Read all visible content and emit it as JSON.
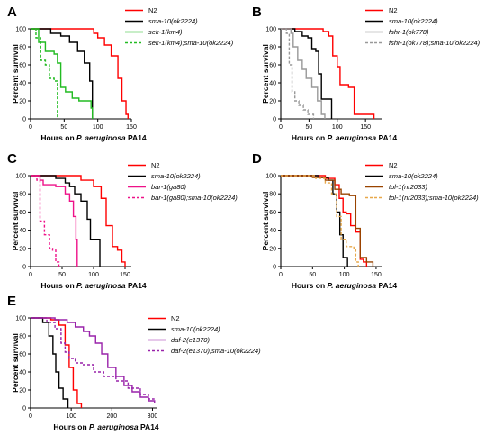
{
  "chart_data": [
    {
      "panel": "A",
      "type": "line",
      "step": true,
      "ylabel": "Percent survival",
      "xlabel_parts": [
        {
          "t": "Hours on ",
          "i": false
        },
        {
          "t": "P. aeruginosa",
          "i": true
        },
        {
          "t": " PA14",
          "i": false
        }
      ],
      "xlim": [
        0,
        150
      ],
      "ylim": [
        0,
        100
      ],
      "xticks": [
        0,
        50,
        100,
        150
      ],
      "yticks": [
        0,
        20,
        40,
        60,
        80,
        100
      ],
      "series": [
        {
          "name": "N2",
          "italic": false,
          "color": "#ff0000",
          "dash": false,
          "points": [
            [
              0,
              100
            ],
            [
              80,
              100
            ],
            [
              94,
              95
            ],
            [
              100,
              90
            ],
            [
              110,
              82
            ],
            [
              120,
              70
            ],
            [
              130,
              45
            ],
            [
              136,
              20
            ],
            [
              142,
              5
            ],
            [
              145,
              0
            ]
          ]
        },
        {
          "name": "sma-10(ok2224)",
          "italic": true,
          "color": "#000000",
          "dash": false,
          "points": [
            [
              0,
              100
            ],
            [
              30,
              95
            ],
            [
              45,
              92
            ],
            [
              58,
              85
            ],
            [
              70,
              75
            ],
            [
              80,
              62
            ],
            [
              88,
              42
            ],
            [
              92,
              0
            ]
          ]
        },
        {
          "name": "sek-1(km4)",
          "italic": true,
          "color": "#22bb22",
          "dash": false,
          "points": [
            [
              0,
              100
            ],
            [
              12,
              85
            ],
            [
              22,
              75
            ],
            [
              35,
              72
            ],
            [
              40,
              62
            ],
            [
              45,
              35
            ],
            [
              52,
              30
            ],
            [
              62,
              23
            ],
            [
              72,
              20
            ],
            [
              90,
              12
            ],
            [
              92,
              0
            ]
          ]
        },
        {
          "name": "sek-1(km4);sma-10(ok2224)",
          "italic": true,
          "color": "#22bb22",
          "dash": true,
          "points": [
            [
              0,
              100
            ],
            [
              8,
              90
            ],
            [
              15,
              65
            ],
            [
              22,
              60
            ],
            [
              28,
              45
            ],
            [
              35,
              42
            ],
            [
              40,
              0
            ]
          ]
        }
      ]
    },
    {
      "panel": "B",
      "type": "line",
      "step": true,
      "ylabel": "Percent survival",
      "xlabel_parts": [
        {
          "t": "Hours on ",
          "i": false
        },
        {
          "t": "P. aeruginosa",
          "i": true
        },
        {
          "t": " PA14",
          "i": false
        }
      ],
      "xlim": [
        0,
        180
      ],
      "ylim": [
        0,
        100
      ],
      "xticks": [
        0,
        50,
        100,
        150
      ],
      "yticks": [
        0,
        20,
        40,
        60,
        80,
        100
      ],
      "series": [
        {
          "name": "N2",
          "italic": false,
          "color": "#ff0000",
          "dash": false,
          "points": [
            [
              0,
              100
            ],
            [
              60,
              100
            ],
            [
              75,
              97
            ],
            [
              85,
              92
            ],
            [
              92,
              70
            ],
            [
              100,
              58
            ],
            [
              105,
              38
            ],
            [
              120,
              35
            ],
            [
              130,
              5
            ],
            [
              165,
              0
            ]
          ]
        },
        {
          "name": "sma-10(ok2224)",
          "italic": true,
          "color": "#000000",
          "dash": false,
          "points": [
            [
              0,
              100
            ],
            [
              25,
              97
            ],
            [
              38,
              92
            ],
            [
              48,
              90
            ],
            [
              55,
              78
            ],
            [
              62,
              75
            ],
            [
              67,
              50
            ],
            [
              72,
              22
            ],
            [
              90,
              0
            ]
          ]
        },
        {
          "name": "fshr-1(ok778)",
          "italic": true,
          "color": "#999999",
          "dash": false,
          "points": [
            [
              0,
              100
            ],
            [
              18,
              95
            ],
            [
              22,
              80
            ],
            [
              30,
              65
            ],
            [
              38,
              55
            ],
            [
              45,
              45
            ],
            [
              55,
              35
            ],
            [
              65,
              20
            ],
            [
              72,
              5
            ],
            [
              78,
              0
            ]
          ]
        },
        {
          "name": "fshr-1(ok778);sma-10(ok2224)",
          "italic": true,
          "color": "#999999",
          "dash": true,
          "points": [
            [
              0,
              100
            ],
            [
              10,
              95
            ],
            [
              15,
              60
            ],
            [
              20,
              30
            ],
            [
              25,
              20
            ],
            [
              32,
              15
            ],
            [
              40,
              10
            ],
            [
              48,
              5
            ],
            [
              58,
              0
            ]
          ]
        }
      ]
    },
    {
      "panel": "C",
      "type": "line",
      "step": true,
      "ylabel": "Percent survival",
      "xlabel_parts": [
        {
          "t": "Hours on ",
          "i": false
        },
        {
          "t": "P. aeruginosa",
          "i": true
        },
        {
          "t": " PA14",
          "i": false
        }
      ],
      "xlim": [
        0,
        160
      ],
      "ylim": [
        0,
        100
      ],
      "xticks": [
        0,
        50,
        100,
        150
      ],
      "yticks": [
        0,
        20,
        40,
        60,
        80,
        100
      ],
      "series": [
        {
          "name": "N2",
          "italic": false,
          "color": "#ff0000",
          "dash": false,
          "points": [
            [
              0,
              100
            ],
            [
              55,
              100
            ],
            [
              80,
              95
            ],
            [
              100,
              88
            ],
            [
              112,
              75
            ],
            [
              120,
              45
            ],
            [
              130,
              22
            ],
            [
              138,
              18
            ],
            [
              145,
              5
            ],
            [
              150,
              0
            ]
          ]
        },
        {
          "name": "sma-10(ok2224)",
          "italic": true,
          "color": "#000000",
          "dash": false,
          "points": [
            [
              0,
              100
            ],
            [
              40,
              97
            ],
            [
              55,
              92
            ],
            [
              62,
              88
            ],
            [
              70,
              80
            ],
            [
              80,
              72
            ],
            [
              90,
              52
            ],
            [
              95,
              30
            ],
            [
              110,
              0
            ]
          ]
        },
        {
          "name": "bar-1(ga80)",
          "italic": true,
          "color": "#ee1188",
          "dash": false,
          "points": [
            [
              0,
              100
            ],
            [
              15,
              95
            ],
            [
              20,
              90
            ],
            [
              40,
              88
            ],
            [
              55,
              80
            ],
            [
              62,
              72
            ],
            [
              68,
              55
            ],
            [
              72,
              30
            ],
            [
              74,
              0
            ]
          ]
        },
        {
          "name": "bar-1(ga80);sma-10(ok2224)",
          "italic": true,
          "color": "#ee1188",
          "dash": true,
          "points": [
            [
              0,
              100
            ],
            [
              10,
              95
            ],
            [
              15,
              50
            ],
            [
              22,
              35
            ],
            [
              30,
              20
            ],
            [
              35,
              18
            ],
            [
              40,
              5
            ],
            [
              45,
              0
            ]
          ]
        }
      ]
    },
    {
      "panel": "D",
      "type": "line",
      "step": true,
      "ylabel": "Percent survival",
      "xlabel_parts": [
        {
          "t": "Hours on ",
          "i": false
        },
        {
          "t": "P. aeruginosa",
          "i": true
        },
        {
          "t": " PA14",
          "i": false
        }
      ],
      "xlim": [
        0,
        160
      ],
      "ylim": [
        0,
        100
      ],
      "xticks": [
        0,
        50,
        100,
        150
      ],
      "yticks": [
        0,
        20,
        40,
        60,
        80,
        100
      ],
      "series": [
        {
          "name": "N2",
          "italic": false,
          "color": "#ff0000",
          "dash": false,
          "points": [
            [
              0,
              100
            ],
            [
              70,
              97
            ],
            [
              85,
              90
            ],
            [
              92,
              75
            ],
            [
              98,
              60
            ],
            [
              103,
              58
            ],
            [
              110,
              45
            ],
            [
              118,
              38
            ],
            [
              125,
              8
            ],
            [
              130,
              5
            ],
            [
              135,
              0
            ]
          ]
        },
        {
          "name": "sma-10(ok2224)",
          "italic": true,
          "color": "#000000",
          "dash": false,
          "points": [
            [
              0,
              100
            ],
            [
              60,
              98
            ],
            [
              75,
              95
            ],
            [
              82,
              80
            ],
            [
              88,
              60
            ],
            [
              93,
              35
            ],
            [
              98,
              10
            ],
            [
              105,
              0
            ]
          ]
        },
        {
          "name": "tol-1(nr2033)",
          "italic": true,
          "color": "#994400",
          "dash": false,
          "points": [
            [
              0,
              100
            ],
            [
              50,
              98
            ],
            [
              70,
              95
            ],
            [
              85,
              85
            ],
            [
              95,
              80
            ],
            [
              108,
              78
            ],
            [
              118,
              42
            ],
            [
              125,
              10
            ],
            [
              135,
              5
            ],
            [
              145,
              0
            ]
          ]
        },
        {
          "name": "tol-1(nr2033);sma-10(ok2224)",
          "italic": true,
          "color": "#e8a84a",
          "dash": true,
          "points": [
            [
              0,
              100
            ],
            [
              55,
              97
            ],
            [
              70,
              92
            ],
            [
              80,
              80
            ],
            [
              88,
              55
            ],
            [
              95,
              30
            ],
            [
              103,
              22
            ],
            [
              115,
              20
            ],
            [
              118,
              5
            ],
            [
              122,
              0
            ]
          ]
        }
      ]
    },
    {
      "panel": "E",
      "type": "line",
      "step": true,
      "ylabel": "Percent survival",
      "xlabel_parts": [
        {
          "t": "Hours on ",
          "i": false
        },
        {
          "t": "P. aeruginosa",
          "i": true
        },
        {
          "t": " PA14",
          "i": false
        }
      ],
      "xlim": [
        0,
        310
      ],
      "ylim": [
        0,
        100
      ],
      "xticks": [
        0,
        100,
        200,
        300
      ],
      "yticks": [
        0,
        20,
        40,
        60,
        80,
        100
      ],
      "series": [
        {
          "name": "N2",
          "italic": false,
          "color": "#ff0000",
          "dash": false,
          "points": [
            [
              0,
              100
            ],
            [
              50,
              98
            ],
            [
              70,
              92
            ],
            [
              85,
              70
            ],
            [
              95,
              45
            ],
            [
              105,
              20
            ],
            [
              115,
              5
            ],
            [
              125,
              0
            ]
          ]
        },
        {
          "name": "sma-10(ok2224)",
          "italic": true,
          "color": "#000000",
          "dash": false,
          "points": [
            [
              0,
              100
            ],
            [
              30,
              95
            ],
            [
              45,
              80
            ],
            [
              55,
              60
            ],
            [
              62,
              40
            ],
            [
              70,
              22
            ],
            [
              80,
              10
            ],
            [
              92,
              0
            ]
          ]
        },
        {
          "name": "daf-2(e1370)",
          "italic": true,
          "color": "#9922aa",
          "dash": false,
          "points": [
            [
              0,
              100
            ],
            [
              60,
              98
            ],
            [
              90,
              95
            ],
            [
              110,
              90
            ],
            [
              130,
              85
            ],
            [
              145,
              80
            ],
            [
              160,
              72
            ],
            [
              175,
              60
            ],
            [
              190,
              45
            ],
            [
              210,
              35
            ],
            [
              230,
              25
            ],
            [
              250,
              18
            ],
            [
              270,
              12
            ],
            [
              290,
              8
            ],
            [
              305,
              5
            ]
          ]
        },
        {
          "name": "daf-2(e1370);sma-10(ok2224)",
          "italic": true,
          "color": "#9922aa",
          "dash": true,
          "points": [
            [
              0,
              100
            ],
            [
              40,
              95
            ],
            [
              60,
              88
            ],
            [
              75,
              72
            ],
            [
              85,
              62
            ],
            [
              95,
              55
            ],
            [
              110,
              50
            ],
            [
              130,
              48
            ],
            [
              155,
              40
            ],
            [
              180,
              35
            ],
            [
              210,
              30
            ],
            [
              240,
              22
            ],
            [
              270,
              15
            ],
            [
              290,
              10
            ],
            [
              305,
              10
            ]
          ]
        }
      ]
    }
  ]
}
